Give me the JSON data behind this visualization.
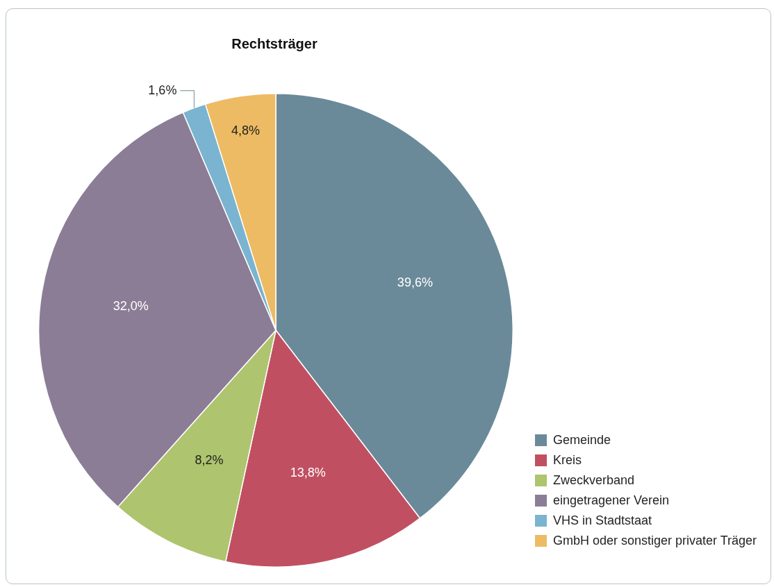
{
  "chart_data": {
    "type": "pie",
    "title": "Rechtsträger",
    "categories": [
      "Gemeinde",
      "Kreis",
      "Zweckverband",
      "eingetragener Verein",
      "VHS in Stadtstaat",
      "GmbH oder sonstiger privater Träger"
    ],
    "values": [
      39.6,
      13.8,
      8.2,
      32.0,
      1.6,
      4.8
    ],
    "colors": [
      "#6b8a99",
      "#c05061",
      "#aec46e",
      "#8c7d96",
      "#7ab4d1",
      "#edbb63"
    ],
    "value_labels": [
      "39,6%",
      "13,8%",
      "8,2%",
      "32,0%",
      "1,6%",
      "4,8%"
    ],
    "legend": "bottom right"
  }
}
